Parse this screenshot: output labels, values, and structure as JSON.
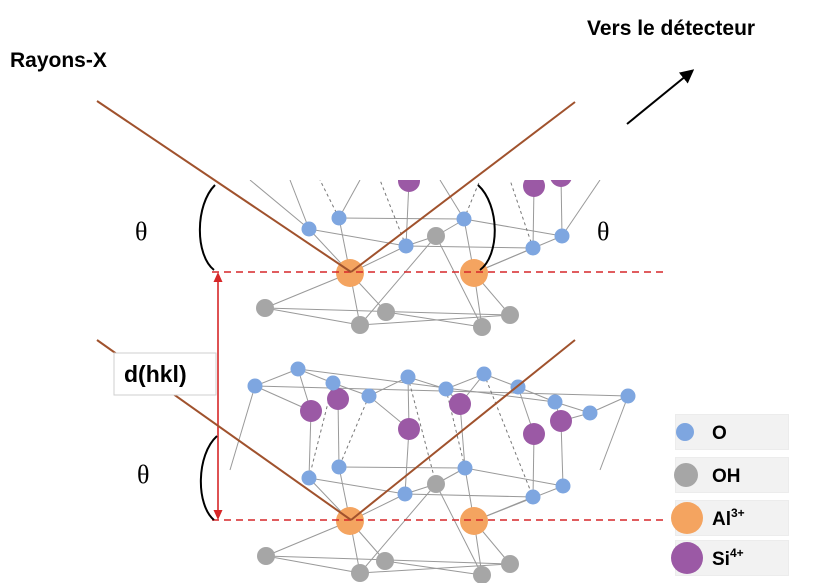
{
  "labels": {
    "incident": "Rayons-X",
    "detector": "Vers le détecteur",
    "spacing": "d(hkl)",
    "theta_top_left": "θ",
    "theta_top_right": "θ",
    "theta_bottom_left": "θ"
  },
  "legend": [
    {
      "label": "O",
      "sup": "",
      "color": "#7ea6e0"
    },
    {
      "label": "OH",
      "sup": "",
      "color": "#a6a6a6"
    },
    {
      "label": "Al",
      "sup": "3+",
      "color": "#f4a460"
    },
    {
      "label": "Si",
      "sup": "4+",
      "color": "#9b59a5"
    }
  ],
  "colors": {
    "ray": "#a0522d",
    "plane": "#d62728",
    "spacing_arrow": "#d62728",
    "bond": "#999999",
    "O": "#7ea6e0",
    "OH": "#a6a6a6",
    "Al": "#f4a460",
    "Si": "#9b59a5"
  }
}
